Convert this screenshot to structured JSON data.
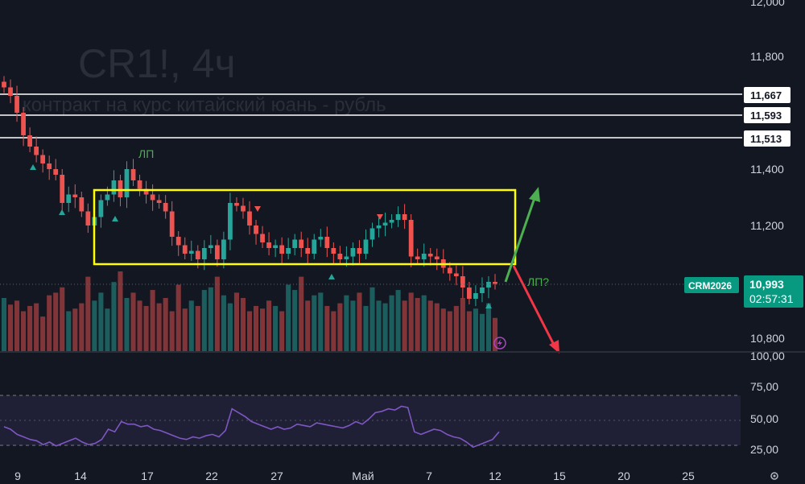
{
  "watermark": {
    "symbol": "CR1!, 4ч",
    "description": "контракт на курс китайский юань - рубль"
  },
  "annotations": {
    "lp_top": "ЛП",
    "lp_right": "ЛП?"
  },
  "colors": {
    "background": "#131722",
    "bull": "#26a69a",
    "bear": "#ef5350",
    "box": "#ffff00",
    "arrow_up": "#4caf50",
    "arrow_down": "#f23645",
    "rsi": "#7e57c2",
    "level_line": "#ffffff",
    "last_price_bg": "#089981"
  },
  "price_axis": {
    "ticks": [
      "12,000",
      "11,800",
      "11,400",
      "11,200",
      "10,800"
    ],
    "level_tags": [
      "11,667",
      "11,593",
      "11,513"
    ],
    "symbol_tag": "CRM2026",
    "last_price": "10,993",
    "countdown": "02:57:31"
  },
  "rsi_axis": {
    "ticks": [
      "100,00",
      "75,00",
      "50,00",
      "25,00"
    ]
  },
  "time_axis": {
    "labels": [
      "9",
      "14",
      "17",
      "22",
      "27",
      "Май",
      "7",
      "12",
      "15",
      "20",
      "25"
    ]
  },
  "chart_data": [
    {
      "type": "candlestick",
      "title": "CR1!, 4ч",
      "subtitle": "контракт на курс китайский юань - рубль",
      "y_axis_ticks": [
        12.0,
        11.8,
        11.4,
        11.2,
        10.8
      ],
      "ylim": [
        10.74,
        12.0
      ],
      "horizontal_levels": [
        11.667,
        11.593,
        11.513
      ],
      "range_box": {
        "top": 11.33,
        "bottom": 11.07
      },
      "last_price": 10.993,
      "close": [
        11.69,
        11.66,
        11.6,
        11.52,
        11.48,
        11.45,
        11.42,
        11.4,
        11.38,
        11.28,
        11.31,
        11.3,
        11.25,
        11.2,
        11.23,
        11.29,
        11.31,
        11.36,
        11.3,
        11.4,
        11.36,
        11.33,
        11.31,
        11.29,
        11.28,
        11.25,
        11.16,
        11.13,
        11.1,
        11.11,
        11.08,
        11.12,
        11.13,
        11.08,
        11.15,
        11.28,
        11.27,
        11.25,
        11.2,
        11.17,
        11.14,
        11.12,
        11.13,
        11.1,
        11.12,
        11.15,
        11.12,
        11.1,
        11.15,
        11.16,
        11.12,
        11.1,
        11.08,
        11.09,
        11.12,
        11.1,
        11.15,
        11.19,
        11.2,
        11.21,
        11.22,
        11.24,
        11.22,
        11.09,
        11.08,
        11.1,
        11.09,
        11.08,
        11.05,
        11.03,
        11.02,
        10.98,
        10.94,
        10.96,
        10.98,
        11.0,
        10.993
      ],
      "volume": [
        40,
        35,
        38,
        30,
        34,
        36,
        26,
        42,
        44,
        48,
        30,
        32,
        36,
        56,
        38,
        44,
        32,
        52,
        60,
        40,
        44,
        38,
        34,
        46,
        36,
        40,
        30,
        50,
        32,
        38,
        34,
        46,
        48,
        56,
        42,
        36,
        44,
        40,
        30,
        34,
        32,
        38,
        34,
        30,
        50,
        46,
        56,
        38,
        42,
        44,
        34,
        30,
        36,
        42,
        38,
        44,
        34,
        48,
        38,
        36,
        42,
        46,
        38,
        44,
        40,
        42,
        38,
        36,
        32,
        30,
        34,
        40,
        30,
        32,
        28,
        36,
        25
      ]
    },
    {
      "type": "line",
      "title": "RSI",
      "y_axis_ticks": [
        100,
        75,
        50,
        25
      ],
      "ylim": [
        20,
        100
      ],
      "bands": [
        30,
        70
      ],
      "values": [
        44,
        42,
        38,
        36,
        34,
        33,
        30,
        32,
        29,
        31,
        33,
        35,
        32,
        30,
        31,
        34,
        42,
        40,
        48,
        46,
        46,
        44,
        45,
        42,
        41,
        39,
        37,
        35,
        34,
        36,
        35,
        37,
        38,
        36,
        41,
        58,
        55,
        52,
        48,
        46,
        44,
        42,
        44,
        42,
        43,
        46,
        45,
        44,
        47,
        46,
        45,
        44,
        43,
        45,
        48,
        46,
        50,
        55,
        56,
        58,
        57,
        60,
        59,
        40,
        38,
        40,
        42,
        41,
        38,
        36,
        35,
        32,
        28,
        30,
        32,
        34,
        40
      ]
    }
  ]
}
